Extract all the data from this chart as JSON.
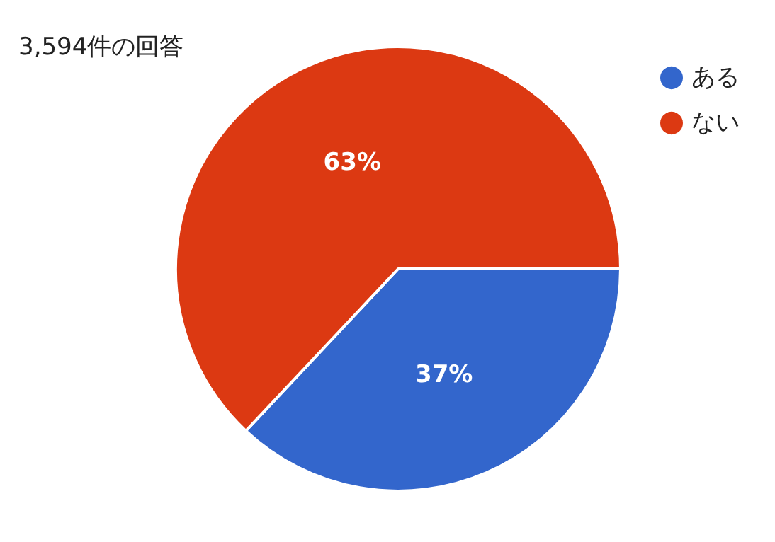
{
  "chart_data": {
    "type": "pie",
    "title": "3,594件の回答",
    "categories": [
      "ある",
      "ない"
    ],
    "values": [
      37,
      63
    ],
    "colors": [
      "#3366cc",
      "#dc3912"
    ],
    "value_labels": [
      "37%",
      "63%"
    ],
    "legend": "top right"
  }
}
